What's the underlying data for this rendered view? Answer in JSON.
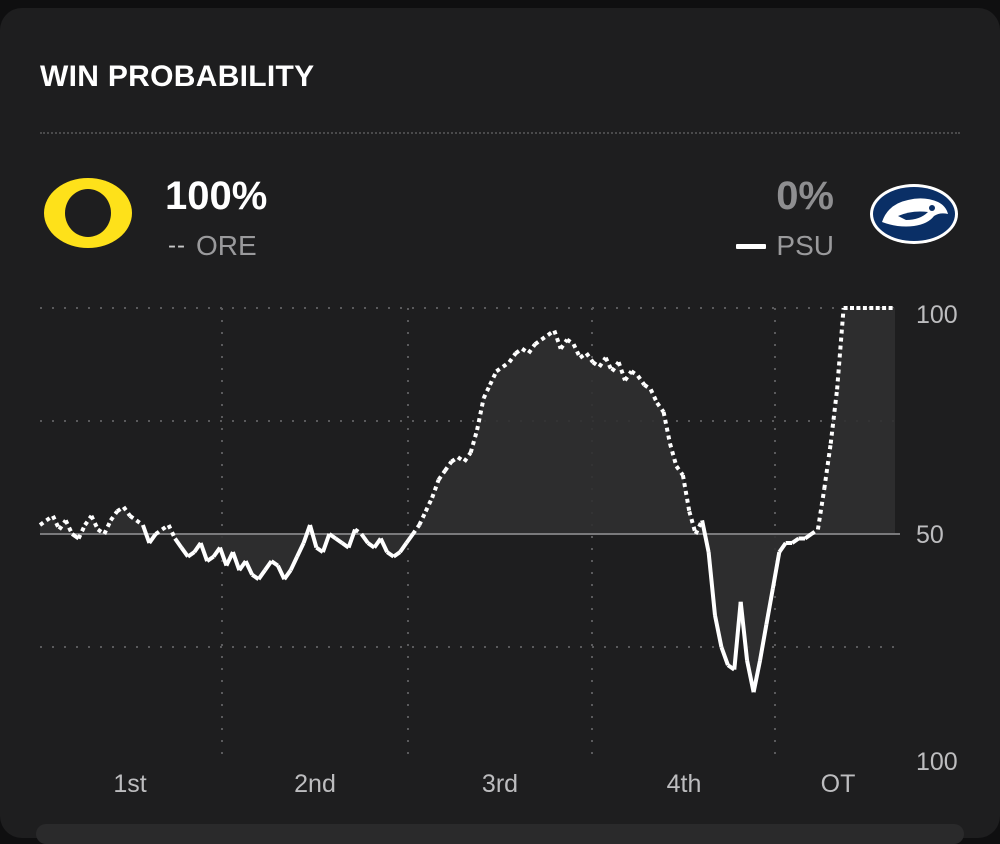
{
  "widget": {
    "title": "WIN PROBABILITY",
    "teams": [
      {
        "abbr": "ORE",
        "pct": "100%",
        "logo": "oregon-o-logo",
        "color": "#fee11a",
        "legend_style": "dashed",
        "legend_glyph": "--"
      },
      {
        "abbr": "PSU",
        "pct": "0%",
        "logo": "penn-state-nittany-lion-logo",
        "color": "#0a2f66",
        "legend_style": "solid"
      }
    ]
  },
  "chart_data": {
    "type": "line",
    "x_labels": [
      "1st",
      "2nd",
      "3rd",
      "4th",
      "OT"
    ],
    "y_tick_labels": [
      "100",
      "50",
      "100"
    ],
    "ylim": [
      0,
      100
    ],
    "midline": 50,
    "grid": true,
    "series_note_colors": {
      "line": "#ffffff",
      "fill": "#2f2f30"
    },
    "x": [
      0,
      1,
      2,
      3,
      4,
      5,
      6,
      7,
      8,
      9,
      10,
      11,
      12,
      13,
      14,
      15,
      16,
      17,
      18,
      19,
      20,
      21,
      22,
      23,
      24,
      25,
      26,
      27,
      28,
      29,
      30,
      31,
      32,
      33,
      34,
      35,
      36,
      37,
      38,
      39,
      40,
      41,
      42,
      43,
      44,
      45,
      46,
      47,
      48,
      49,
      50,
      51,
      52,
      53,
      54,
      55,
      56,
      57,
      58,
      59,
      60,
      61,
      62,
      63,
      64,
      65,
      66,
      67,
      68,
      69,
      70,
      71,
      72,
      73,
      74,
      75,
      76,
      77,
      78,
      79,
      80,
      81,
      82,
      83,
      84,
      85,
      86,
      87,
      88,
      89,
      90,
      91,
      92,
      93,
      94,
      95,
      96,
      97,
      98,
      99,
      100,
      101,
      102,
      103,
      104,
      105,
      106,
      107,
      108,
      109,
      110,
      111,
      112,
      113,
      114,
      115,
      116,
      117,
      118,
      119,
      120,
      121,
      122,
      123,
      124,
      125,
      126,
      127,
      128,
      129,
      130,
      131,
      132,
      133
    ],
    "values": [
      52,
      53,
      54,
      51,
      53,
      50,
      49,
      52,
      54,
      51,
      50,
      53,
      55,
      56,
      54,
      53,
      52,
      48,
      50,
      51,
      52,
      49,
      47,
      45,
      46,
      48,
      44,
      45,
      47,
      43,
      46,
      42,
      44,
      41,
      40,
      42,
      44,
      43,
      40,
      42,
      45,
      48,
      52,
      47,
      46,
      50,
      49,
      48,
      47,
      51,
      50,
      48,
      47,
      49,
      46,
      45,
      46,
      48,
      50,
      52,
      55,
      58,
      62,
      64,
      66,
      67,
      66,
      68,
      73,
      80,
      83,
      86,
      87,
      88,
      90,
      91,
      90,
      92,
      93,
      94,
      95,
      91,
      93,
      92,
      89,
      90,
      88,
      87,
      89,
      86,
      88,
      84,
      86,
      85,
      83,
      82,
      79,
      77,
      70,
      65,
      63,
      55,
      50,
      53,
      46,
      32,
      25,
      21,
      20,
      35,
      22,
      15,
      22,
      30,
      38,
      46,
      48,
      48,
      49,
      49,
      50,
      51,
      60,
      70,
      82,
      100,
      100,
      100,
      100,
      100,
      100,
      100,
      100,
      100
    ]
  }
}
